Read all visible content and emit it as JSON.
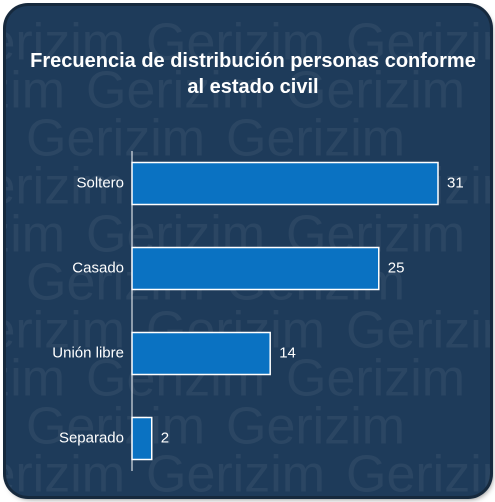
{
  "chart_data": {
    "type": "bar",
    "orientation": "horizontal",
    "title": "Frecuencia de distribución personas conforme al estado civil",
    "watermark": "Gerizim",
    "categories": [
      "Soltero",
      "Casado",
      "Unión libre",
      "Separado"
    ],
    "values": [
      31,
      25,
      14,
      2
    ],
    "color": "#0a72c2"
  }
}
